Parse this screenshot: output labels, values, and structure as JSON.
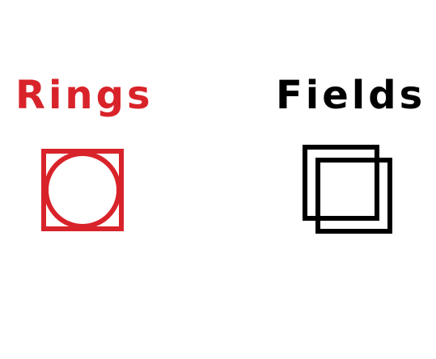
{
  "rings": {
    "label": "Rings",
    "color": "#d9232a",
    "icon": "square-with-inscribed-circle-icon"
  },
  "fields": {
    "label": "Fields",
    "color": "#000000",
    "icon": "overlapping-squares-icon"
  }
}
